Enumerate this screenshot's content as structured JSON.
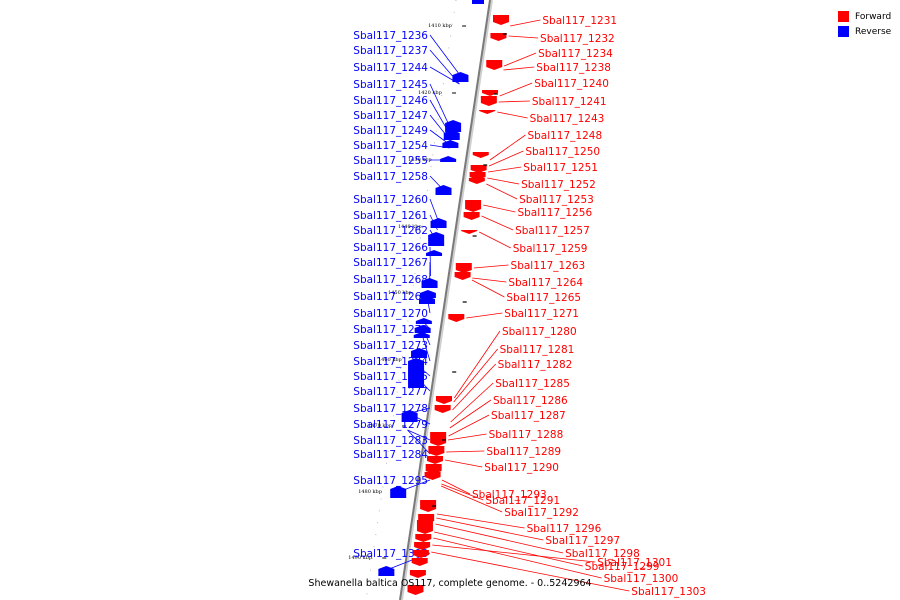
{
  "caption": "Shewanella baltica OS117, complete genome. - 0..5242964",
  "legend": [
    {
      "label": "Forward",
      "color": "#ff0000"
    },
    {
      "label": "Reverse",
      "color": "#0000ff"
    }
  ],
  "colors": {
    "forward": "#ff0000",
    "reverse": "#0000ff",
    "backbone": "#808080"
  },
  "ticks": [
    "1410 kbp",
    "1420 kbp",
    "1430 kbp",
    "1440 kbp",
    "1450 kbp",
    "1460 kbp",
    "1470 kbp",
    "1480 kbp",
    "1490 kbp"
  ],
  "reverse_genes": [
    "Sbal117_1236",
    "Sbal117_1237",
    "Sbal117_1244",
    "Sbal117_1245",
    "Sbal117_1246",
    "Sbal117_1247",
    "Sbal117_1249",
    "Sbal117_1254",
    "Sbal117_1255",
    "Sbal117_1258",
    "Sbal117_1260",
    "Sbal117_1261",
    "Sbal117_1262",
    "Sbal117_1266",
    "Sbal117_1267",
    "Sbal117_1268",
    "Sbal117_1269",
    "Sbal117_1270",
    "Sbal117_1272",
    "Sbal117_1273",
    "Sbal117_1274",
    "Sbal117_1275",
    "Sbal117_1277",
    "Sbal117_1278",
    "Sbal117_1279",
    "Sbal117_1283",
    "Sbal117_1284",
    "Sbal117_1295",
    "Sbal117_1308"
  ],
  "forward_genes": [
    "Sbal117_1231",
    "Sbal117_1232",
    "Sbal117_1234",
    "Sbal117_1238",
    "Sbal117_1240",
    "Sbal117_1241",
    "Sbal117_1243",
    "Sbal117_1248",
    "Sbal117_1250",
    "Sbal117_1251",
    "Sbal117_1252",
    "Sbal117_1253",
    "Sbal117_1256",
    "Sbal117_1257",
    "Sbal117_1259",
    "Sbal117_1263",
    "Sbal117_1264",
    "Sbal117_1265",
    "Sbal117_1271",
    "Sbal117_1280",
    "Sbal117_1281",
    "Sbal117_1282",
    "Sbal117_1285",
    "Sbal117_1286",
    "Sbal117_1287",
    "Sbal117_1288",
    "Sbal117_1289",
    "Sbal117_1290",
    "Sbal117_1293",
    "Sbal117_1291",
    "Sbal117_1292",
    "Sbal117_1296",
    "Sbal117_1297",
    "Sbal117_1298",
    "Sbal117_1299",
    "Sbal117_1300",
    "Sbal117_1301",
    "Sbal117_1303"
  ]
}
